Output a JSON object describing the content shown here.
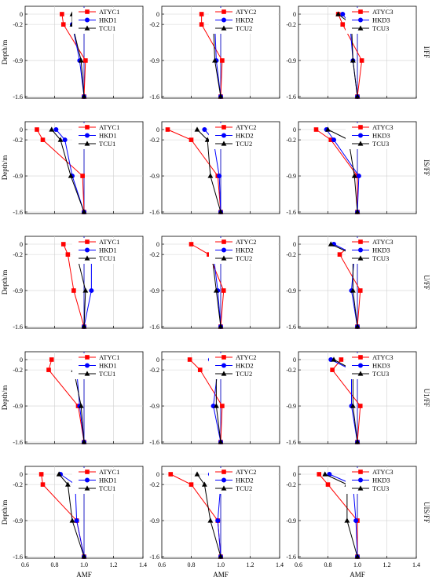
{
  "figure": {
    "y_axis_label": "Depth/m",
    "x_axis_label": "AMF",
    "row_labels": [
      "I/FF",
      "IS/FF",
      "U/FF",
      "U1/FF",
      "UIS/FF"
    ],
    "x_tick_labels": [
      "0.6",
      "0.8",
      "1.0",
      "1.2",
      "1.4"
    ],
    "y_tick_labels": [
      "0",
      "-0.2",
      "-0.9",
      "-1.6"
    ]
  },
  "colors": {
    "ATYC": "#ff0000",
    "HKD": "#0000ff",
    "TCU": "#000000",
    "reference_line": "#3333cc"
  },
  "chart_data": {
    "type": "line",
    "layout": "5x3 grid of small multiples",
    "xlim": [
      0.6,
      1.4
    ],
    "xticks": [
      0.6,
      0.8,
      1.0,
      1.2,
      1.4
    ],
    "ylim": [
      -1.6,
      0
    ],
    "depths": [
      0,
      -0.2,
      -0.9,
      -1.6
    ],
    "depth_tick_labels": [
      "0",
      "-0.2",
      "-0.9",
      "-1.6"
    ],
    "reference_line_x": 1.0,
    "grid": true,
    "legend_placement": "top-right",
    "rows": [
      {
        "label": "I/FF",
        "panels": [
          {
            "series": [
              {
                "name": "ATYC1",
                "marker": "square",
                "values": [
                  0.85,
                  0.86,
                  1.01,
                  1.0
                ]
              },
              {
                "name": "HKD1",
                "marker": "circle",
                "values": [
                  0.93,
                  0.92,
                  0.97,
                  1.0
                ]
              },
              {
                "name": "TCU1",
                "marker": "triangle",
                "values": [
                  0.92,
                  0.92,
                  0.98,
                  1.0
                ]
              }
            ]
          },
          {
            "series": [
              {
                "name": "ATYC2",
                "marker": "square",
                "values": [
                  0.87,
                  0.87,
                  1.01,
                  1.0
                ]
              },
              {
                "name": "HKD2",
                "marker": "circle",
                "values": [
                  0.95,
                  0.96,
                  0.97,
                  1.0
                ]
              },
              {
                "name": "TCU2",
                "marker": "triangle",
                "values": [
                  0.95,
                  0.95,
                  0.96,
                  1.0
                ]
              }
            ]
          },
          {
            "series": [
              {
                "name": "ATYC3",
                "marker": "square",
                "values": [
                  0.87,
                  0.9,
                  1.03,
                  1.0
                ]
              },
              {
                "name": "HKD3",
                "marker": "circle",
                "values": [
                  0.9,
                  0.95,
                  0.97,
                  1.0
                ]
              },
              {
                "name": "TCU3",
                "marker": "triangle",
                "values": [
                  0.87,
                  0.96,
                  0.97,
                  1.0
                ]
              }
            ]
          }
        ]
      },
      {
        "label": "IS/FF",
        "panels": [
          {
            "series": [
              {
                "name": "ATYC1",
                "marker": "square",
                "values": [
                  0.68,
                  0.72,
                  0.99,
                  1.0
                ]
              },
              {
                "name": "HKD1",
                "marker": "circle",
                "values": [
                  0.81,
                  0.87,
                  0.92,
                  1.0
                ]
              },
              {
                "name": "TCU1",
                "marker": "triangle",
                "values": [
                  0.78,
                  0.84,
                  0.91,
                  1.0
                ]
              }
            ]
          },
          {
            "series": [
              {
                "name": "ATYC2",
                "marker": "square",
                "values": [
                  0.64,
                  0.8,
                  0.98,
                  1.0
                ]
              },
              {
                "name": "HKD2",
                "marker": "circle",
                "values": [
                  0.89,
                  0.95,
                  0.99,
                  1.0
                ]
              },
              {
                "name": "TCU2",
                "marker": "triangle",
                "values": [
                  0.84,
                  0.91,
                  0.93,
                  1.0
                ]
              }
            ]
          },
          {
            "series": [
              {
                "name": "ATYC3",
                "marker": "square",
                "values": [
                  0.72,
                  0.82,
                  1.0,
                  1.0
                ]
              },
              {
                "name": "HKD3",
                "marker": "circle",
                "values": [
                  0.79,
                  0.84,
                  1.01,
                  1.0
                ]
              },
              {
                "name": "TCU3",
                "marker": "triangle",
                "values": [
                  0.8,
                  0.94,
                  0.98,
                  1.0
                ]
              }
            ]
          }
        ]
      },
      {
        "label": "U/FF",
        "panels": [
          {
            "series": [
              {
                "name": "ATYC1",
                "marker": "square",
                "values": [
                  0.86,
                  0.89,
                  0.93,
                  1.0
                ]
              },
              {
                "name": "HKD1",
                "marker": "circle",
                "values": [
                  1.04,
                  1.05,
                  1.05,
                  1.0
                ]
              },
              {
                "name": "TCU1",
                "marker": "triangle",
                "values": [
                  0.95,
                  0.95,
                  1.01,
                  1.0
                ]
              }
            ]
          },
          {
            "series": [
              {
                "name": "ATYC2",
                "marker": "square",
                "values": [
                  0.8,
                  0.92,
                  1.02,
                  1.0
                ]
              },
              {
                "name": "HKD2",
                "marker": "circle",
                "values": [
                  0.97,
                  0.95,
                  0.98,
                  1.0
                ]
              },
              {
                "name": "TCU2",
                "marker": "triangle",
                "values": [
                  0.95,
                  0.94,
                  0.97,
                  1.0
                ]
              }
            ]
          },
          {
            "series": [
              {
                "name": "ATYC3",
                "marker": "square",
                "values": [
                  0.96,
                  0.88,
                  1.02,
                  1.0
                ]
              },
              {
                "name": "HKD3",
                "marker": "circle",
                "values": [
                  0.84,
                  0.98,
                  0.96,
                  1.0
                ]
              },
              {
                "name": "TCU3",
                "marker": "triangle",
                "values": [
                  0.82,
                  0.97,
                  0.97,
                  1.0
                ]
              }
            ]
          }
        ]
      },
      {
        "label": "U1/FF",
        "panels": [
          {
            "series": [
              {
                "name": "ATYC1",
                "marker": "square",
                "values": [
                  0.78,
                  0.76,
                  0.96,
                  1.0
                ]
              },
              {
                "name": "HKD1",
                "marker": "circle",
                "values": [
                  0.95,
                  0.95,
                  0.97,
                  1.0
                ]
              },
              {
                "name": "TCU1",
                "marker": "triangle",
                "values": [
                  0.96,
                  0.93,
                  0.98,
                  1.0
                ]
              }
            ]
          },
          {
            "series": [
              {
                "name": "ATYC2",
                "marker": "square",
                "values": [
                  0.79,
                  0.86,
                  1.01,
                  1.0
                ]
              },
              {
                "name": "HKD2",
                "marker": "circle",
                "values": [
                  0.93,
                  0.98,
                  0.95,
                  1.0
                ]
              },
              {
                "name": "TCU2",
                "marker": "triangle",
                "values": [
                  0.94,
                  0.97,
                  0.97,
                  1.0
                ]
              }
            ]
          },
          {
            "series": [
              {
                "name": "ATYC3",
                "marker": "square",
                "values": [
                  0.89,
                  0.83,
                  1.02,
                  1.0
                ]
              },
              {
                "name": "HKD3",
                "marker": "circle",
                "values": [
                  0.82,
                  0.96,
                  0.96,
                  1.0
                ]
              },
              {
                "name": "TCU3",
                "marker": "triangle",
                "values": [
                  0.84,
                  0.97,
                  0.97,
                  1.0
                ]
              }
            ]
          }
        ]
      },
      {
        "label": "UIS/FF",
        "panels": [
          {
            "series": [
              {
                "name": "ATYC1",
                "marker": "square",
                "values": [
                  0.71,
                  0.72,
                  0.95,
                  1.0
                ]
              },
              {
                "name": "HKD1",
                "marker": "circle",
                "values": [
                  0.84,
                  0.94,
                  0.95,
                  1.0
                ]
              },
              {
                "name": "TCU1",
                "marker": "triangle",
                "values": [
                  0.83,
                  0.89,
                  0.92,
                  1.0
                ]
              }
            ]
          },
          {
            "series": [
              {
                "name": "ATYC2",
                "marker": "square",
                "values": [
                  0.66,
                  0.8,
                  0.98,
                  1.0
                ]
              },
              {
                "name": "HKD2",
                "marker": "circle",
                "values": [
                  0.93,
                  1.0,
                  0.98,
                  1.0
                ]
              },
              {
                "name": "TCU2",
                "marker": "triangle",
                "values": [
                  0.84,
                  0.89,
                  0.93,
                  1.0
                ]
              }
            ]
          },
          {
            "series": [
              {
                "name": "ATYC3",
                "marker": "square",
                "values": [
                  0.74,
                  0.8,
                  1.0,
                  1.0
                ]
              },
              {
                "name": "HKD3",
                "marker": "circle",
                "values": [
                  0.81,
                  0.97,
                  0.99,
                  1.0
                ]
              },
              {
                "name": "TCU3",
                "marker": "triangle",
                "values": [
                  0.78,
                  0.93,
                  0.93,
                  1.0
                ]
              }
            ]
          }
        ]
      }
    ]
  }
}
